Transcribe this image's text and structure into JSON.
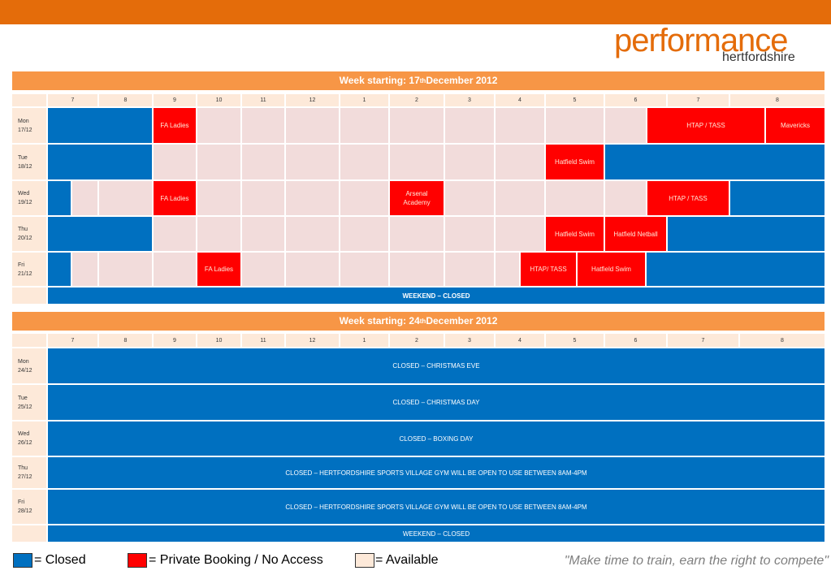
{
  "header": {
    "logo_main": "performance",
    "logo_sub": "hertfordshire"
  },
  "weeks": [
    {
      "title": {
        "prefix": "Week starting: 17",
        "sup": "th",
        "suffix": " December 2012"
      },
      "hours": [
        "7",
        "8",
        "9",
        "10",
        "11",
        "12",
        "1",
        "2",
        "3",
        "4",
        "5",
        "6",
        "7",
        "8"
      ],
      "days": [
        {
          "day": "Mon",
          "date": "17/12",
          "bookings": [
            "FA Ladies",
            "HTAP / TASS",
            "Mavericks"
          ]
        },
        {
          "day": "Tue",
          "date": "18/12",
          "bookings": [
            "Hatfield Swim"
          ]
        },
        {
          "day": "Wed",
          "date": "19/12",
          "bookings": [
            "FA Ladies",
            "Arsenal Academy",
            "HTAP / TASS"
          ]
        },
        {
          "day": "Thu",
          "date": "20/12",
          "bookings": [
            "Hatfield Swim",
            "Hatfield Netball"
          ]
        },
        {
          "day": "Fri",
          "date": "21/12",
          "bookings": [
            "FA Ladies",
            "HTAP/ TASS",
            "Hatfield Swim"
          ]
        }
      ],
      "weekend": "WEEKEND – CLOSED"
    },
    {
      "title": {
        "prefix": "Week starting: 24",
        "sup": "th",
        "suffix": " December 2012"
      },
      "hours": [
        "7",
        "8",
        "9",
        "10",
        "11",
        "12",
        "1",
        "2",
        "3",
        "4",
        "5",
        "6",
        "7",
        "8"
      ],
      "days": [
        {
          "day": "Mon",
          "date": "24/12",
          "note": "CLOSED – CHRISTMAS EVE"
        },
        {
          "day": "Tue",
          "date": "25/12",
          "note": "CLOSED – CHRISTMAS DAY"
        },
        {
          "day": "Wed",
          "date": "26/12",
          "note": "CLOSED – BOXING DAY"
        },
        {
          "day": "Thu",
          "date": "27/12",
          "note": "CLOSED – HERTFORDSHIRE SPORTS VILLAGE GYM WILL BE OPEN TO USE BETWEEN  8AM-4PM"
        },
        {
          "day": "Fri",
          "date": "28/12",
          "note": "CLOSED – HERTFORDSHIRE SPORTS VILLAGE GYM WILL BE OPEN TO USE BETWEEN  8AM-4PM"
        }
      ],
      "weekend": "WEEKEND – CLOSED"
    }
  ],
  "legend": [
    "= Closed",
    "= Private Booking / No Access",
    "= Available"
  ],
  "quote": "\"Make time to train, earn the right to compete\""
}
